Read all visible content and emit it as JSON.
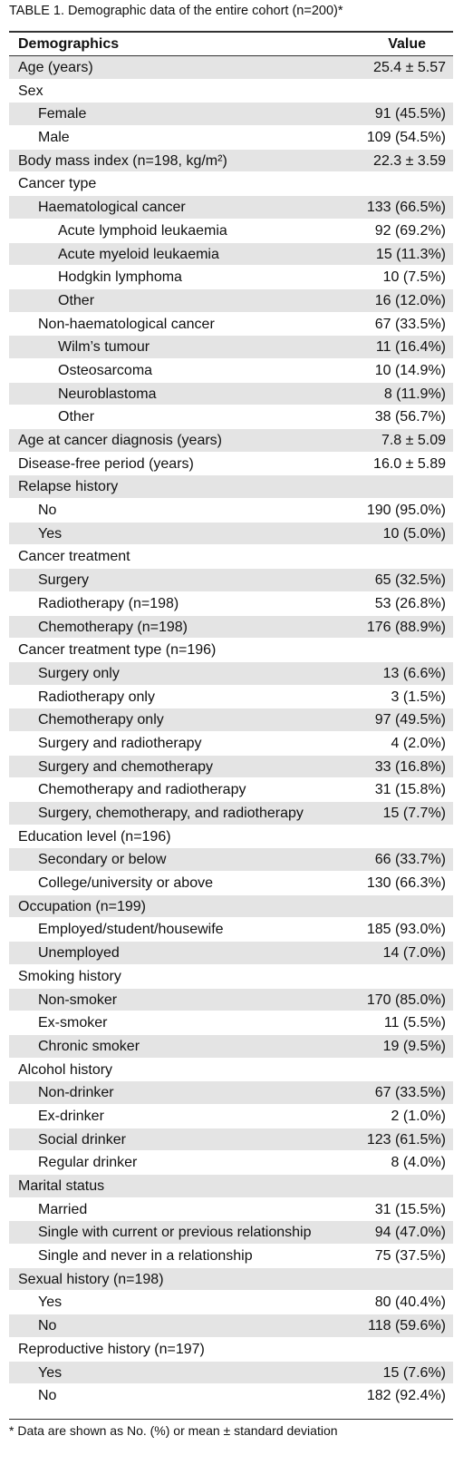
{
  "title": "TABLE 1. Demographic data of the entire cohort (n=200)*",
  "table": {
    "header": [
      "Demographics",
      "Value"
    ],
    "rows": [
      {
        "label": "Age (years)",
        "value": "25.4 ± 5.57"
      },
      {
        "label": "Sex",
        "items": [
          {
            "label": "Female",
            "value": "91 (45.5%)"
          },
          {
            "label": "Male",
            "value": "109 (54.5%)"
          }
        ]
      },
      {
        "label": "Body mass index (n=198, kg/m²)",
        "value": "22.3 ± 3.59"
      },
      {
        "label": "Cancer type",
        "items": [
          {
            "label": "Haematological cancer",
            "value": "133 (66.5%)",
            "items": [
              {
                "label": "Acute lymphoid leukaemia",
                "value": "92 (69.2%)"
              },
              {
                "label": "Acute myeloid leukaemia",
                "value": "15 (11.3%)"
              },
              {
                "label": "Hodgkin lymphoma",
                "value": "10 (7.5%)"
              },
              {
                "label": "Other",
                "value": "16 (12.0%)"
              }
            ]
          },
          {
            "label": "Non-haematological cancer",
            "value": "67 (33.5%)",
            "items": [
              {
                "label": "Wilm’s tumour",
                "value": "11 (16.4%)"
              },
              {
                "label": "Osteosarcoma",
                "value": "10 (14.9%)"
              },
              {
                "label": "Neuroblastoma",
                "value": "8 (11.9%)"
              },
              {
                "label": "Other",
                "value": "38 (56.7%)"
              }
            ]
          }
        ]
      },
      {
        "label": "Age at cancer diagnosis (years)",
        "value": "7.8 ± 5.09"
      },
      {
        "label": "Disease-free period (years)",
        "value": "16.0 ± 5.89"
      },
      {
        "label": "Relapse history",
        "items": [
          {
            "label": "No",
            "value": "190 (95.0%)"
          },
          {
            "label": "Yes",
            "value": "10 (5.0%)"
          }
        ]
      },
      {
        "label": "Cancer treatment",
        "items": [
          {
            "label": "Surgery",
            "value": "65 (32.5%)"
          },
          {
            "label": "Radiotherapy (n=198)",
            "value": "53 (26.8%)"
          },
          {
            "label": "Chemotherapy (n=198)",
            "value": "176 (88.9%)"
          }
        ]
      },
      {
        "label": "Cancer treatment type (n=196)",
        "items": [
          {
            "label": "Surgery only",
            "value": "13 (6.6%)"
          },
          {
            "label": "Radiotherapy only",
            "value": "3 (1.5%)"
          },
          {
            "label": "Chemotherapy only",
            "value": "97 (49.5%)"
          },
          {
            "label": "Surgery and radiotherapy",
            "value": "4 (2.0%)"
          },
          {
            "label": "Surgery and chemotherapy",
            "value": "33 (16.8%)"
          },
          {
            "label": "Chemotherapy and radiotherapy",
            "value": "31 (15.8%)"
          },
          {
            "label": "Surgery, chemotherapy, and radiotherapy",
            "value": "15 (7.7%)"
          }
        ]
      },
      {
        "label": "Education level (n=196)",
        "items": [
          {
            "label": "Secondary or below",
            "value": "66 (33.7%)"
          },
          {
            "label": "College/university or above",
            "value": "130 (66.3%)"
          }
        ]
      },
      {
        "label": "Occupation (n=199)",
        "items": [
          {
            "label": "Employed/student/housewife",
            "value": "185 (93.0%)"
          },
          {
            "label": "Unemployed",
            "value": "14 (7.0%)"
          }
        ]
      },
      {
        "label": "Smoking history",
        "items": [
          {
            "label": "Non-smoker",
            "value": "170 (85.0%)"
          },
          {
            "label": "Ex-smoker",
            "value": "11 (5.5%)"
          },
          {
            "label": "Chronic smoker",
            "value": "19 (9.5%)"
          }
        ]
      },
      {
        "label": "Alcohol history",
        "items": [
          {
            "label": "Non-drinker",
            "value": "67 (33.5%)"
          },
          {
            "label": "Ex-drinker",
            "value": "2 (1.0%)"
          },
          {
            "label": "Social drinker",
            "value": "123 (61.5%)"
          },
          {
            "label": "Regular drinker",
            "value": "8 (4.0%)"
          }
        ]
      },
      {
        "label": "Marital status",
        "items": [
          {
            "label": "Married",
            "value": "31 (15.5%)"
          },
          {
            "label": "Single with current or previous relationship",
            "value": "94 (47.0%)"
          },
          {
            "label": "Single and never in a relationship",
            "value": "75 (37.5%)"
          }
        ]
      },
      {
        "label": "Sexual history (n=198)",
        "items": [
          {
            "label": "Yes",
            "value": "80 (40.4%)"
          },
          {
            "label": "No",
            "value": "118 (59.6%)"
          }
        ]
      },
      {
        "label": "Reproductive history (n=197)",
        "items": [
          {
            "label": "Yes",
            "value": "15 (7.6%)"
          },
          {
            "label": "No",
            "value": "182 (92.4%)"
          }
        ]
      }
    ]
  },
  "footnote": "* Data are shown as No. (%) or mean ± standard deviation"
}
